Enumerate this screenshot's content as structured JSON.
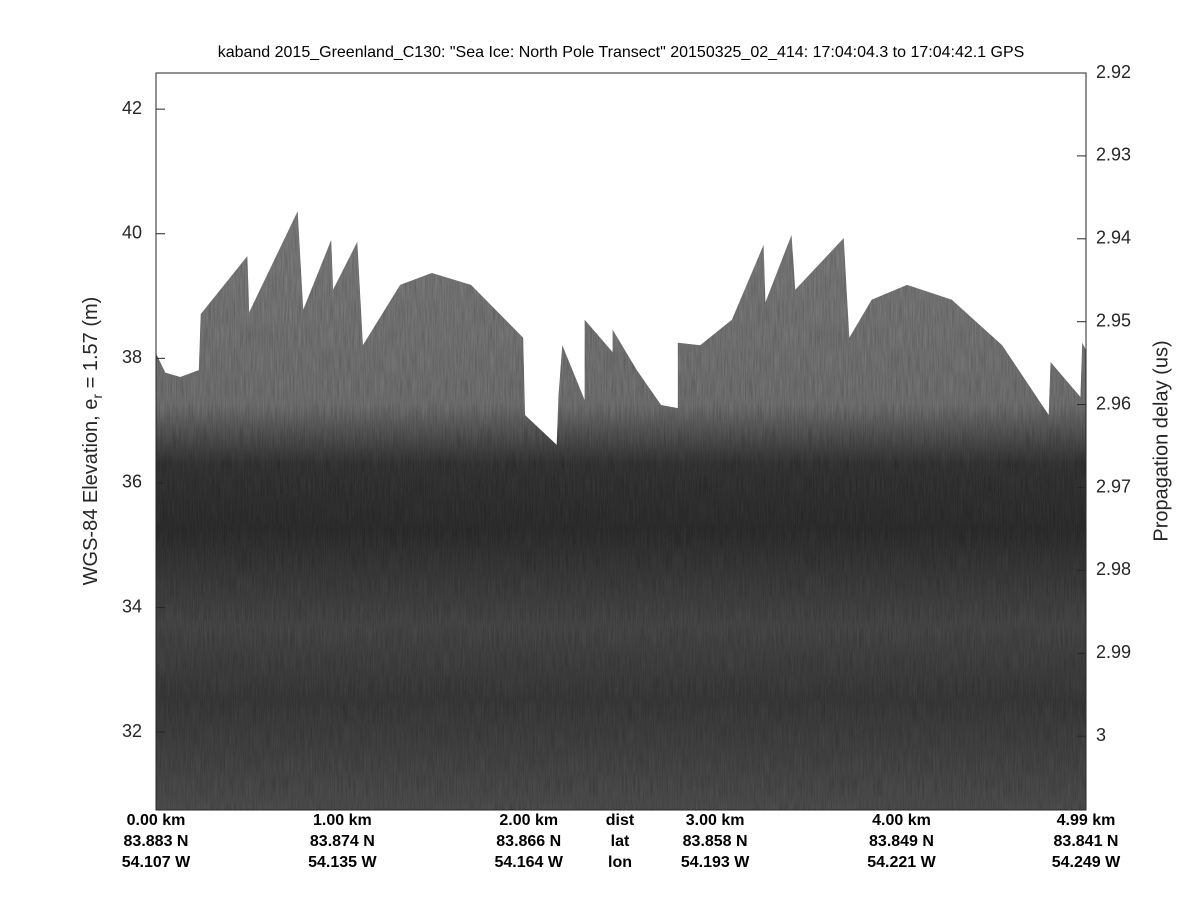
{
  "chart_data": {
    "type": "echogram",
    "title": "kaband 2015_Greenland_C130: \"Sea Ice: North Pole Transect\"  20150325_02_414: 17:04:04.3 to 17:04:42.1 GPS",
    "ylabel": {
      "text": "WGS-84 Elevation, e",
      "subscript": "r",
      "suffix": " = 1.57 (m)"
    },
    "y2label": "Propagation delay (us)",
    "row_labels": [
      "dist",
      "lat",
      "lon"
    ],
    "xlim": [
      0,
      4.99
    ],
    "xticks": [
      {
        "value": 0,
        "label": "0.00 km"
      },
      {
        "value": 1,
        "label": "1.00 km"
      },
      {
        "value": 2,
        "label": "2.00 km"
      },
      {
        "value": 3,
        "label": "3.00 km"
      },
      {
        "value": 4,
        "label": "4.00 km"
      },
      {
        "value": 4.99,
        "label": "4.99 km"
      }
    ],
    "lat_labels": [
      "83.883 N",
      "83.874 N",
      "83.866 N",
      "83.858 N",
      "83.849 N",
      "83.841 N"
    ],
    "lon_labels": [
      "54.107 W",
      "54.135 W",
      "54.164 W",
      "54.193 W",
      "54.221 W",
      "54.249 W"
    ],
    "ylim": [
      30.75,
      42.58
    ],
    "yticks": [
      32,
      34,
      36,
      38,
      40,
      42
    ],
    "y2lim": [
      3.0089,
      2.92
    ],
    "y2ticks": [
      2.92,
      2.93,
      2.94,
      2.95,
      2.96,
      2.97,
      2.98,
      2.99,
      3
    ],
    "surface": {
      "x": [
        0,
        0.05,
        0.13,
        0.23,
        0.24,
        0.49,
        0.5,
        0.76,
        0.79,
        0.94,
        0.95,
        1.08,
        1.11,
        1.31,
        1.48,
        1.69,
        1.97,
        1.98,
        2.15,
        2.16,
        2.18,
        2.3,
        2.3,
        2.45,
        2.45,
        2.58,
        2.71,
        2.8,
        2.8,
        2.92,
        3.09,
        3.26,
        3.27,
        3.41,
        3.43,
        3.69,
        3.72,
        3.84,
        4.03,
        4.27,
        4.54,
        4.79,
        4.8,
        4.96,
        4.97,
        4.99
      ],
      "values": [
        38.08,
        37.77,
        37.7,
        37.81,
        38.71,
        39.64,
        38.74,
        40.36,
        38.78,
        39.9,
        39.1,
        39.87,
        38.21,
        39.18,
        39.37,
        39.18,
        38.33,
        37.09,
        36.61,
        37.41,
        38.21,
        37.33,
        38.62,
        38.1,
        38.46,
        37.81,
        37.25,
        37.2,
        38.25,
        38.21,
        38.62,
        39.82,
        38.9,
        39.98,
        39.1,
        39.93,
        38.33,
        38.94,
        39.18,
        38.94,
        38.21,
        37.09,
        37.94,
        37.38,
        38.25,
        38.13
      ]
    }
  }
}
